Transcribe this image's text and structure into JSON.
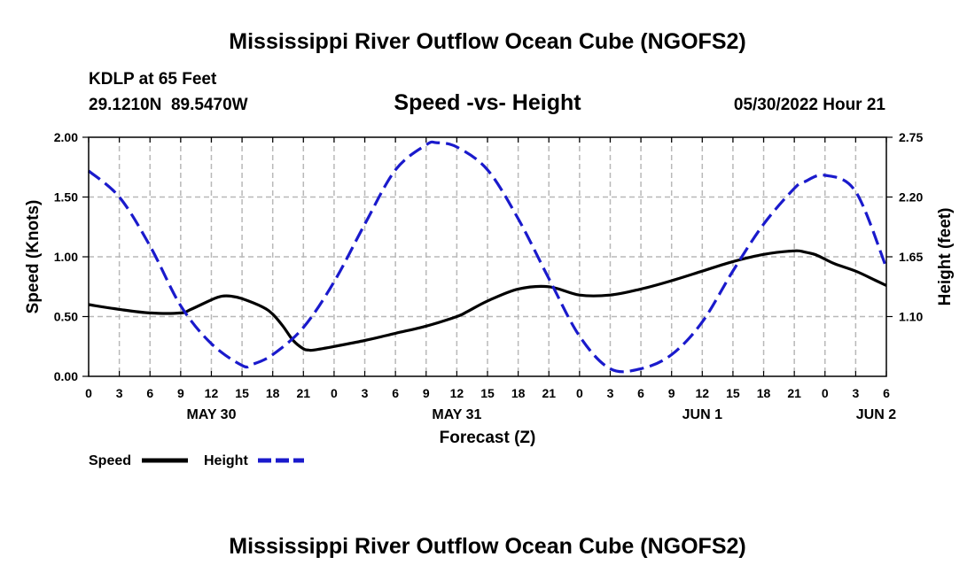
{
  "page": {
    "title": "Mississippi River Outflow Ocean Cube (NGOFS2)",
    "footer_title": "Mississippi River Outflow Ocean Cube (NGOFS2)"
  },
  "station": {
    "name": "KDLP at 65 Feet",
    "coords": "29.1210N  89.5470W",
    "datetime": "05/30/2022 Hour 21"
  },
  "chart_data": {
    "type": "line",
    "title": "Speed -vs- Height",
    "xlabel": "Forecast (Z)",
    "ylabel": "Speed (Knots)",
    "ylabel_right": "Height (feet)",
    "x_unit": "hours since 2022-05-30 00Z",
    "xlim": [
      0,
      78
    ],
    "ylim": [
      0,
      2
    ],
    "ylim_right": [
      0.55,
      2.75
    ],
    "grid": true,
    "x_ticks": [
      0,
      3,
      6,
      9,
      12,
      15,
      18,
      21,
      24,
      27,
      30,
      33,
      36,
      39,
      42,
      45,
      48,
      51,
      54,
      57,
      60,
      63,
      66,
      69,
      72,
      75,
      78
    ],
    "x_tick_labels": [
      "0",
      "3",
      "6",
      "9",
      "12",
      "15",
      "18",
      "21",
      "0",
      "3",
      "6",
      "9",
      "12",
      "15",
      "18",
      "21",
      "0",
      "3",
      "6",
      "9",
      "12",
      "15",
      "18",
      "21",
      "0",
      "3",
      "6"
    ],
    "y_ticks": [
      0,
      0.5,
      1,
      1.5,
      2
    ],
    "y_tick_labels": [
      "0.00",
      "0.50",
      "1.00",
      "1.50",
      "2.00"
    ],
    "y_right_ticks": [
      1.1,
      1.65,
      2.2,
      2.75
    ],
    "y_right_tick_labels": [
      "1.10",
      "1.65",
      "2.20",
      "2.75"
    ],
    "date_labels": [
      {
        "x": 12,
        "label": "MAY 30"
      },
      {
        "x": 36,
        "label": "MAY 31"
      },
      {
        "x": 60,
        "label": "JUN 1"
      },
      {
        "x": 77,
        "label": "JUN 2"
      }
    ],
    "series": [
      {
        "name": "Speed",
        "axis": "left",
        "color": "#000000",
        "style": "solid",
        "x": [
          0,
          3,
          6,
          9,
          10,
          12,
          13,
          14,
          15,
          17,
          18,
          19,
          20,
          21,
          21.5,
          22,
          24,
          27,
          30,
          33,
          36,
          37,
          39,
          42,
          45,
          48,
          51,
          54,
          57,
          60,
          63,
          66,
          69,
          70,
          71,
          72,
          73,
          75,
          77,
          78
        ],
        "values": [
          0.6,
          0.56,
          0.53,
          0.53,
          0.56,
          0.64,
          0.67,
          0.67,
          0.65,
          0.58,
          0.52,
          0.42,
          0.3,
          0.23,
          0.22,
          0.22,
          0.25,
          0.3,
          0.36,
          0.42,
          0.5,
          0.54,
          0.63,
          0.73,
          0.75,
          0.68,
          0.68,
          0.73,
          0.8,
          0.88,
          0.96,
          1.02,
          1.05,
          1.04,
          1.02,
          0.98,
          0.94,
          0.88,
          0.8,
          0.76
        ]
      },
      {
        "name": "Height",
        "axis": "right",
        "color": "#1a1acc",
        "style": "dashed",
        "x": [
          0,
          3,
          6,
          9,
          12,
          15,
          16,
          18,
          21,
          24,
          27,
          30,
          33,
          34,
          36,
          39,
          42,
          45,
          48,
          51,
          54,
          57,
          60,
          63,
          66,
          69,
          70,
          72,
          75,
          78
        ],
        "values": [
          2.44,
          2.2,
          1.75,
          1.2,
          0.85,
          0.65,
          0.66,
          0.75,
          1.0,
          1.42,
          1.95,
          2.45,
          2.68,
          2.7,
          2.66,
          2.45,
          2.0,
          1.45,
          0.92,
          0.62,
          0.62,
          0.75,
          1.05,
          1.52,
          1.95,
          2.28,
          2.34,
          2.4,
          2.25,
          1.55
        ]
      }
    ]
  },
  "legend": {
    "speed_label": "Speed",
    "height_label": "Height",
    "speed_color": "#000000",
    "height_color": "#1a1acc"
  }
}
